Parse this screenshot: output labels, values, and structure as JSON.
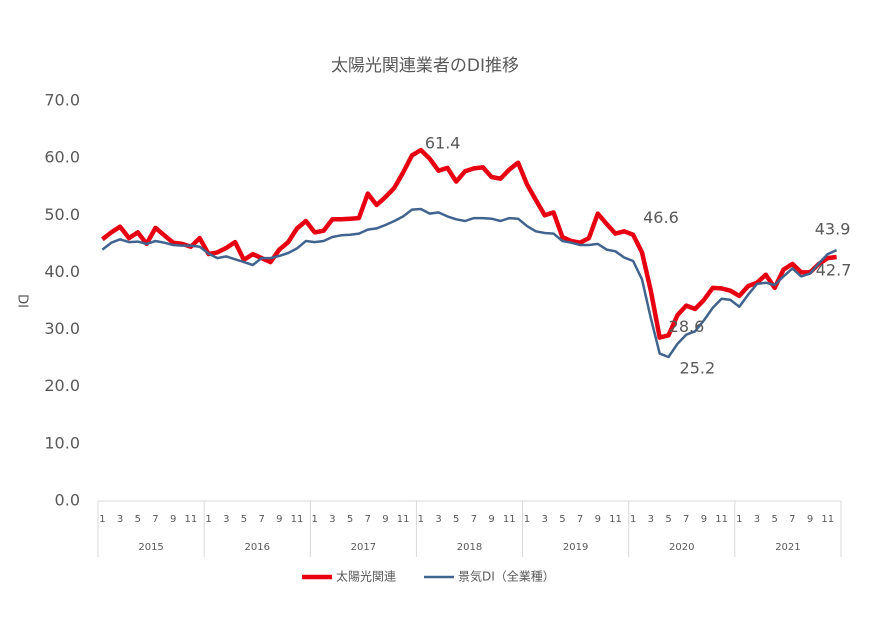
{
  "chart_data": {
    "type": "line",
    "title": "太陽光関連業者のDI推移",
    "y_label": "DI",
    "categories": [
      "1",
      null,
      "3",
      null,
      "5",
      null,
      "7",
      null,
      "9",
      null,
      "11",
      null,
      "1",
      null,
      "3",
      null,
      "5",
      null,
      "7",
      null,
      "9",
      null,
      "11",
      null,
      "1",
      null,
      "3",
      null,
      "5",
      null,
      "7",
      null,
      "9",
      null,
      "11",
      null,
      "1",
      null,
      "3",
      null,
      "5",
      null,
      "7",
      null,
      "9",
      null,
      "11",
      null,
      "1",
      null,
      "3",
      null,
      "5",
      null,
      "7",
      null,
      "9",
      null,
      "11",
      null,
      "1",
      null,
      "3",
      null,
      "5",
      null,
      "7",
      null,
      "9",
      null,
      "11",
      null,
      "1",
      null,
      "3",
      null,
      "5",
      null,
      "7",
      null,
      "9",
      null,
      "11",
      null
    ],
    "category_groups": [
      "2015",
      "2016",
      "2017",
      "2018",
      "2019",
      "2020",
      "2021"
    ],
    "ylim": [
      0,
      70
    ],
    "yticks": [
      {
        "value": 0,
        "label": "0.0"
      },
      {
        "value": 10,
        "label": "10.0"
      },
      {
        "value": 20,
        "label": "20.0"
      },
      {
        "value": 30,
        "label": "30.0"
      },
      {
        "value": 40,
        "label": "40.0"
      },
      {
        "value": 50,
        "label": "50.0"
      },
      {
        "value": 60,
        "label": "60.0"
      },
      {
        "value": 70,
        "label": "70.0"
      }
    ],
    "grid": false,
    "legend": "bottom",
    "series": [
      {
        "name": "太陽光関連",
        "color": "#e60012",
        "values": [
          45.8,
          47,
          48,
          46,
          47,
          45,
          47.8,
          46.5,
          45.2,
          45,
          44.5,
          46,
          43.2,
          43.5,
          44.3,
          45.3,
          42.2,
          43.2,
          42.5,
          41.8,
          44,
          45.3,
          47.7,
          49,
          47,
          47.3,
          49.3,
          49.3,
          49.4,
          49.5,
          53.8,
          51.8,
          53.2,
          54.8,
          57.5,
          60.5,
          61.4,
          59.9,
          57.8,
          58.3,
          55.9,
          57.7,
          58.2,
          58.4,
          56.7,
          56.4,
          58,
          59.2,
          55.4,
          52.7,
          50,
          50.5,
          46.2,
          45.5,
          45.2,
          46,
          50.3,
          48.5,
          46.8,
          47.2,
          46.6,
          43.5,
          36.8,
          28.6,
          29,
          32.5,
          34.2,
          33.6,
          35.2,
          37.3,
          37.2,
          36.8,
          35.9,
          37.6,
          38.2,
          39.6,
          37.3,
          40.5,
          41.5,
          40,
          40,
          41.5,
          42.5,
          42.7
        ]
      },
      {
        "name": "景気DI（全業種）",
        "color": "#41648f",
        "values": [
          44,
          45.2,
          45.8,
          45.3,
          45.4,
          45,
          45.5,
          45.2,
          44.8,
          44.7,
          44.7,
          44.5,
          43.3,
          42.5,
          42.8,
          42.3,
          41.8,
          41.3,
          42.5,
          42.5,
          42.9,
          43.4,
          44.2,
          45.5,
          45.3,
          45.5,
          46.2,
          46.5,
          46.6,
          46.8,
          47.5,
          47.7,
          48.3,
          49,
          49.8,
          51,
          51.1,
          50.3,
          50.5,
          49.8,
          49.3,
          49,
          49.5,
          49.5,
          49.4,
          49,
          49.5,
          49.4,
          48.1,
          47.2,
          46.9,
          46.8,
          45.5,
          45.2,
          44.8,
          44.8,
          45,
          44,
          43.7,
          42.6,
          42,
          38.8,
          32,
          25.8,
          25.2,
          27.5,
          29.1,
          29.7,
          31.6,
          33.8,
          35.4,
          35.2,
          34,
          36.1,
          38,
          38.2,
          37.8,
          39.3,
          40.7,
          39.3,
          39.8,
          41.6,
          43.2,
          43.9
        ]
      }
    ]
  }
}
